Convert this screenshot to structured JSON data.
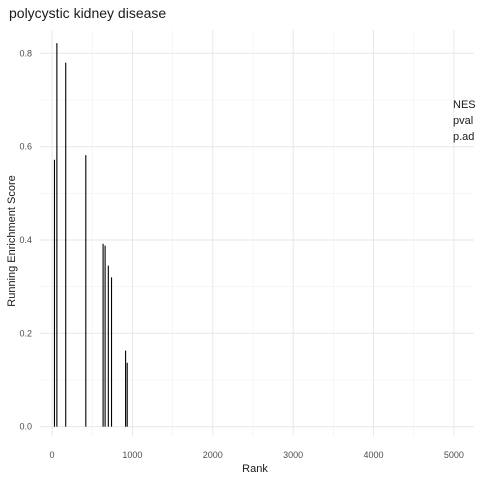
{
  "chart_data": {
    "type": "bar",
    "title": "polycystic kidney disease",
    "xlabel": "Rank",
    "ylabel": "Running Enrichment Score",
    "xlim": [
      -150,
      5250
    ],
    "ylim": [
      -0.02,
      0.85
    ],
    "x_ticks": [
      0,
      1000,
      2000,
      3000,
      4000,
      5000
    ],
    "x_tick_labels": [
      "0",
      "1000",
      "2000",
      "3000",
      "4000",
      "5000"
    ],
    "y_ticks": [
      0.0,
      0.2,
      0.4,
      0.6,
      0.8
    ],
    "y_tick_labels": [
      "0.0",
      "0.2",
      "0.4",
      "0.6",
      "0.8"
    ],
    "grid": true,
    "x": [
      30,
      60,
      170,
      420,
      635,
      660,
      700,
      740,
      915,
      935
    ],
    "values": [
      0.572,
      0.822,
      0.78,
      0.582,
      0.392,
      0.388,
      0.345,
      0.32,
      0.163,
      0.137
    ],
    "annotations": [
      "NES",
      "pval",
      "p.ad"
    ]
  }
}
